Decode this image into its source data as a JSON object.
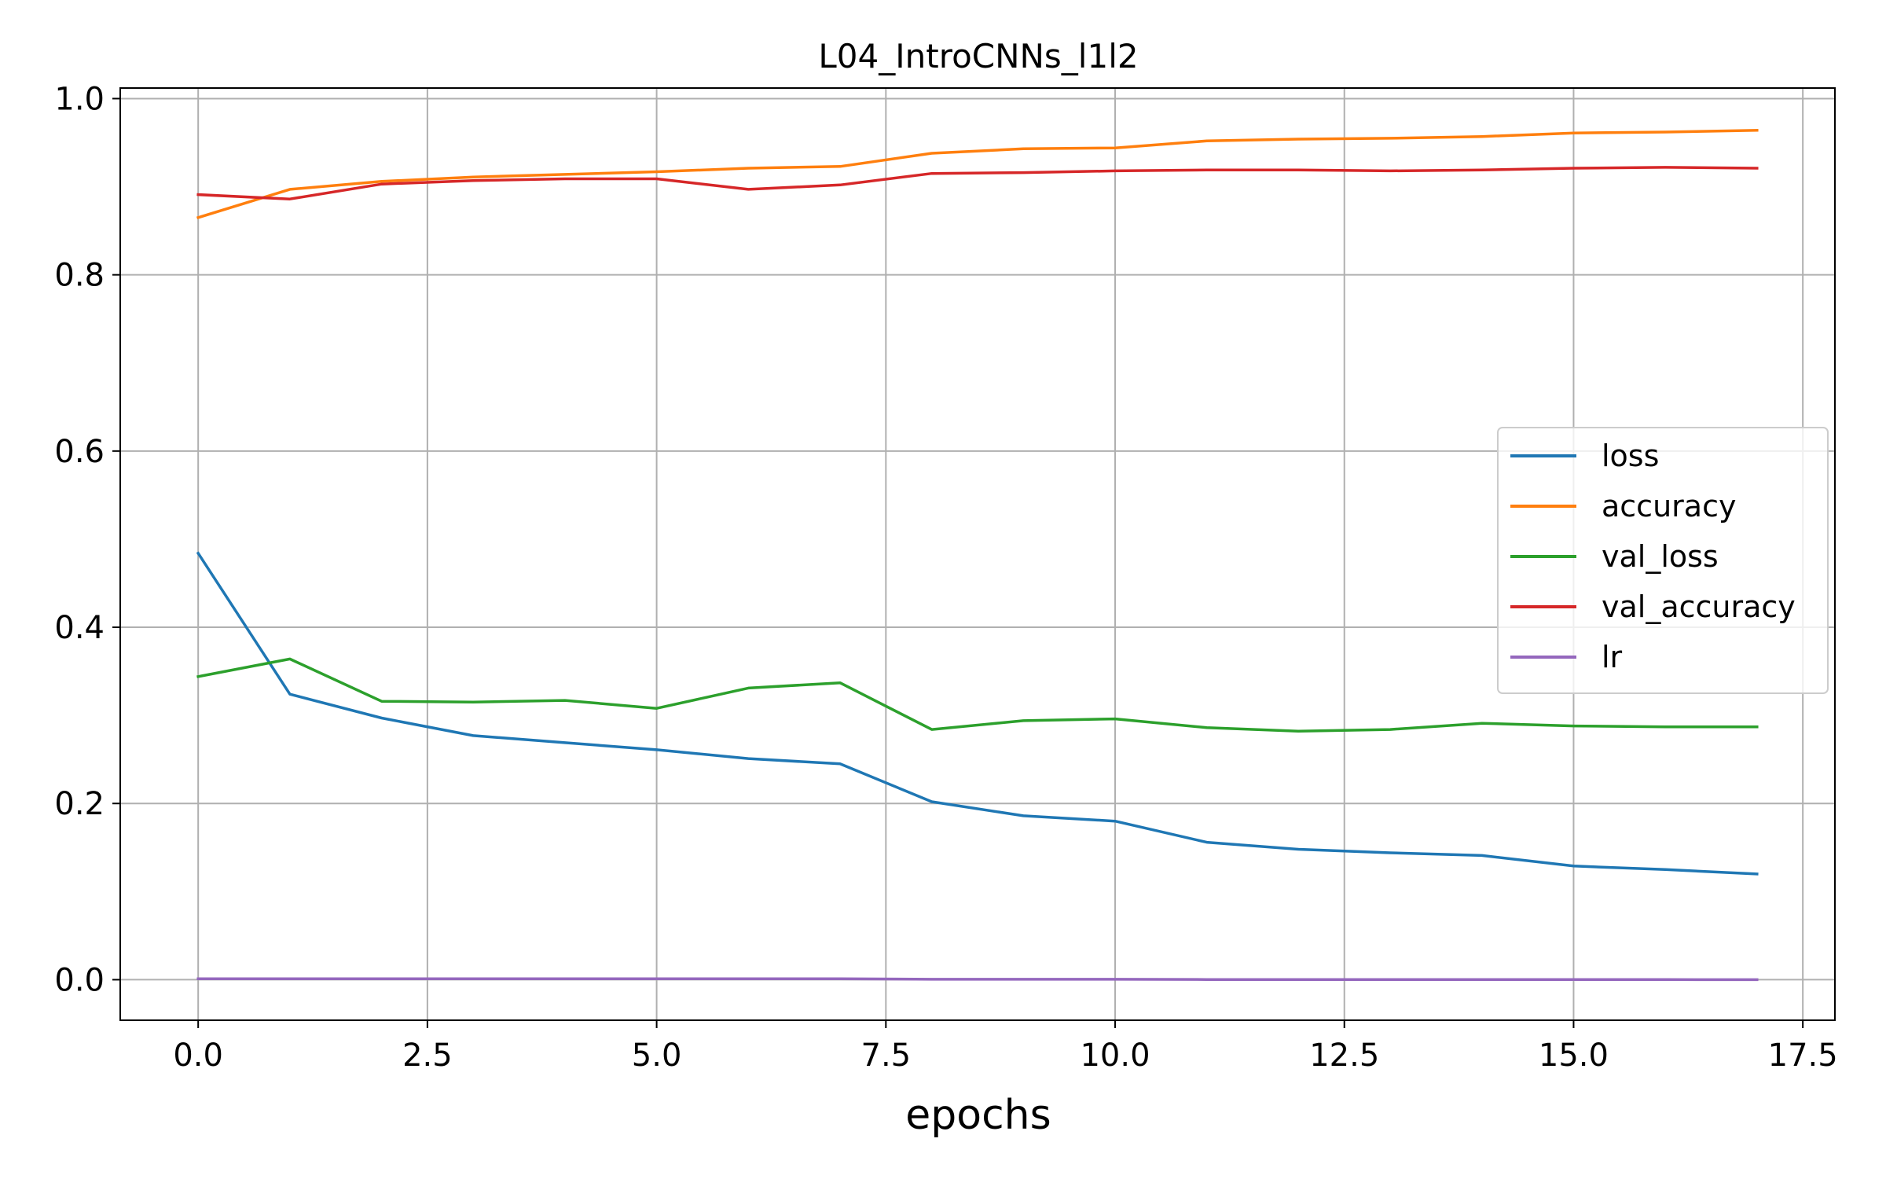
{
  "chart_data": {
    "type": "line",
    "title": "L04_IntroCNNs_l1l2",
    "xlabel": "epochs",
    "ylabel": "",
    "xlim": [
      -0.85,
      17.85
    ],
    "ylim": [
      -0.046,
      1.012
    ],
    "xticks": [
      0.0,
      2.5,
      5.0,
      7.5,
      10.0,
      12.5,
      15.0,
      17.5
    ],
    "xtick_labels": [
      "0.0",
      "2.5",
      "5.0",
      "7.5",
      "10.0",
      "12.5",
      "15.0",
      "17.5"
    ],
    "yticks": [
      0.0,
      0.2,
      0.4,
      0.6,
      0.8,
      1.0
    ],
    "ytick_labels": [
      "0.0",
      "0.2",
      "0.4",
      "0.6",
      "0.8",
      "1.0"
    ],
    "grid": true,
    "legend_position": "center-right",
    "x": [
      0,
      1,
      2,
      3,
      4,
      5,
      6,
      7,
      8,
      9,
      10,
      11,
      12,
      13,
      14,
      15,
      16,
      17
    ],
    "series": [
      {
        "name": "loss",
        "color": "#1f77b4",
        "values": [
          0.484,
          0.324,
          0.297,
          0.277,
          0.269,
          0.261,
          0.251,
          0.245,
          0.202,
          0.186,
          0.18,
          0.156,
          0.148,
          0.144,
          0.141,
          0.129,
          0.125,
          0.12
        ]
      },
      {
        "name": "accuracy",
        "color": "#ff7f0e",
        "values": [
          0.865,
          0.897,
          0.906,
          0.911,
          0.914,
          0.917,
          0.921,
          0.923,
          0.938,
          0.943,
          0.944,
          0.952,
          0.954,
          0.955,
          0.957,
          0.961,
          0.962,
          0.964
        ]
      },
      {
        "name": "val_loss",
        "color": "#2ca02c",
        "values": [
          0.344,
          0.364,
          0.316,
          0.315,
          0.317,
          0.308,
          0.331,
          0.337,
          0.284,
          0.294,
          0.296,
          0.286,
          0.282,
          0.284,
          0.291,
          0.288,
          0.287,
          0.287
        ]
      },
      {
        "name": "val_accuracy",
        "color": "#d62728",
        "values": [
          0.891,
          0.886,
          0.903,
          0.907,
          0.909,
          0.909,
          0.897,
          0.902,
          0.915,
          0.916,
          0.918,
          0.919,
          0.919,
          0.918,
          0.919,
          0.921,
          0.922,
          0.921
        ]
      },
      {
        "name": "lr",
        "color": "#9467bd",
        "values": [
          0.001,
          0.001,
          0.001,
          0.001,
          0.001,
          0.001,
          0.001,
          0.001,
          0.0005,
          0.0005,
          0.0005,
          0.00025,
          0.00025,
          0.00025,
          0.00025,
          0.000125,
          0.000125,
          6.25e-05
        ]
      }
    ]
  }
}
